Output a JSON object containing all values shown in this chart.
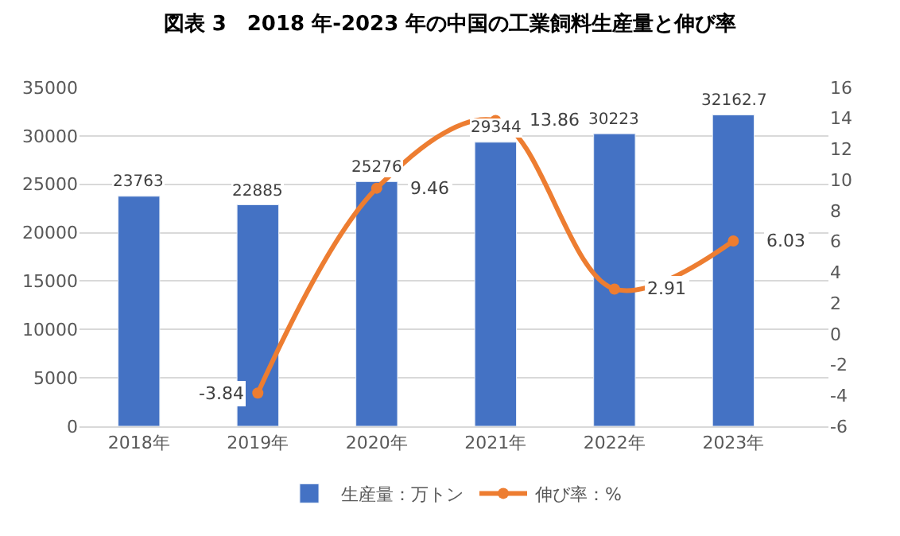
{
  "chart_data": {
    "type": "bar",
    "title": "図表 3　2018 年-2023 年の中国の工業飼料生産量と伸び率",
    "categories": [
      "2018年",
      "2019年",
      "2020年",
      "2021年",
      "2022年",
      "2023年"
    ],
    "series": [
      {
        "name": "生産量：万トン",
        "color": "#4472c4",
        "values": [
          23763,
          22885,
          25276,
          29344,
          30223,
          32162.7
        ]
      },
      {
        "name": "伸び率：%",
        "type": "line",
        "axis": "y2",
        "color": "#ed7d31",
        "marker": "circle",
        "values": [
          null,
          -3.84,
          9.46,
          13.86,
          2.91,
          6.03
        ]
      }
    ],
    "ylim": [
      0,
      35000
    ],
    "yticks": [
      0,
      5000,
      10000,
      15000,
      20000,
      25000,
      30000,
      35000
    ],
    "y2lim": [
      -6,
      16
    ],
    "y2ticks": [
      -6,
      -4,
      -2,
      0,
      2,
      4,
      6,
      8,
      10,
      12,
      14,
      16
    ],
    "data_labels": true,
    "grid": "y",
    "legend": "bottom"
  }
}
